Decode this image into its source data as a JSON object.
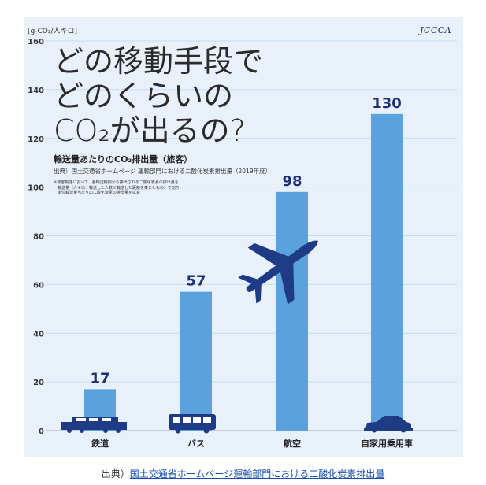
{
  "chart_data": {
    "type": "bar",
    "unit_label": "[g-CO₂/人キロ]",
    "categories": [
      "鉄道",
      "バス",
      "航空",
      "自家用乗用車"
    ],
    "values": [
      17,
      57,
      98,
      130
    ],
    "value_labels": [
      "17",
      "57",
      "98",
      "130"
    ],
    "ylim": [
      0,
      160
    ],
    "yticks": [
      "0",
      "20",
      "40",
      "60",
      "80",
      "100",
      "120",
      "140",
      "160"
    ],
    "grid": true,
    "headline_lines": [
      "どの移動手段で",
      "どのくらいの",
      "CO₂が出るの?"
    ],
    "subtitle": "輸送量あたりのCO₂排出量（旅客）",
    "source": "出典）国土交通省ホームページ 運輸部門における二酸化炭素排出量（2019年度）",
    "note_lines": [
      "※旅客輸送において、各輸送機関から排出される二酸化炭素の排出量を",
      "　輸送量（人キロ：輸送した人数に輸送した距離を乗じたもの）で割り、",
      "　単位輸送量当たりの二酸化炭素の排出量を試算"
    ],
    "bar_color": "#5aa2de",
    "label_color": "#1f2e7a",
    "icons": [
      "train-icon",
      "bus-icon",
      "airplane-icon",
      "car-icon"
    ]
  },
  "logo_text": "JCCCA",
  "footer": {
    "prefix": "出典）",
    "link_text": "国土交通省ホームページ運輸部門における二酸化炭素排出量"
  }
}
